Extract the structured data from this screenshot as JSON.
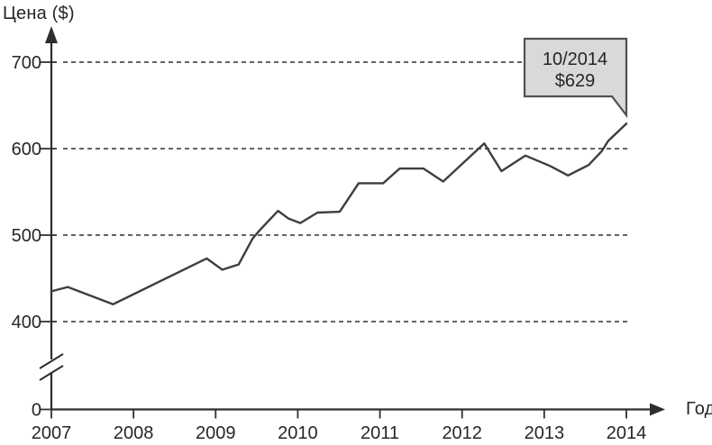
{
  "labels": {
    "y_axis_title": "Цена ($)",
    "x_axis_title": "Год"
  },
  "chart_data": {
    "type": "line",
    "title": "",
    "xlabel": "Год",
    "ylabel": "Цена ($)",
    "grid": "horizontal dashed gridlines at labeled y ticks (400-700)",
    "legend": "none",
    "axis_break": "y-axis break symbol between 0 and 400",
    "xlim": [
      2007,
      2014
    ],
    "ylim_visible": [
      400,
      700
    ],
    "x_ticks": [
      {
        "label": "2007",
        "value": 2007
      },
      {
        "label": "2008",
        "value": 2008
      },
      {
        "label": "2009",
        "value": 2009
      },
      {
        "label": "2010",
        "value": 2010
      },
      {
        "label": "2011",
        "value": 2011
      },
      {
        "label": "2012",
        "value": 2012
      },
      {
        "label": "2013",
        "value": 2013
      },
      {
        "label": "2014",
        "value": 2014
      }
    ],
    "y_ticks": [
      {
        "label": "0",
        "value": 0,
        "gridline": false
      },
      {
        "label": "400",
        "value": 400,
        "gridline": true
      },
      {
        "label": "500",
        "value": 500,
        "gridline": true
      },
      {
        "label": "600",
        "value": 600,
        "gridline": true
      },
      {
        "label": "700",
        "value": 700,
        "gridline": true
      }
    ],
    "series": [
      {
        "name": "price",
        "points": [
          [
            2007.0,
            435
          ],
          [
            2007.2,
            440
          ],
          [
            2007.75,
            420
          ],
          [
            2008.89,
            473
          ],
          [
            2009.08,
            460
          ],
          [
            2009.28,
            466
          ],
          [
            2009.45,
            496
          ],
          [
            2009.53,
            505
          ],
          [
            2009.76,
            528
          ],
          [
            2009.89,
            519
          ],
          [
            2010.03,
            514
          ],
          [
            2010.24,
            526
          ],
          [
            2010.51,
            527
          ],
          [
            2010.74,
            560
          ],
          [
            2011.04,
            560
          ],
          [
            2011.24,
            577
          ],
          [
            2011.53,
            577
          ],
          [
            2011.77,
            562
          ],
          [
            2012.27,
            606
          ],
          [
            2012.48,
            574
          ],
          [
            2012.77,
            592
          ],
          [
            2013.07,
            580
          ],
          [
            2013.29,
            569
          ],
          [
            2013.54,
            581
          ],
          [
            2013.7,
            597
          ],
          [
            2013.78,
            609
          ],
          [
            2014.0,
            629
          ]
        ]
      }
    ],
    "annotation": {
      "lines": [
        "10/2014",
        "$629"
      ],
      "target_point": [
        2014.0,
        629
      ]
    }
  },
  "colors": {
    "background": "#ffffff",
    "line": "#3e3e40",
    "axis": "#2e2e30",
    "grid": "#4e4e50",
    "text": "#262628",
    "callout_fill": "#d9d9d9",
    "callout_border": "#515153"
  }
}
